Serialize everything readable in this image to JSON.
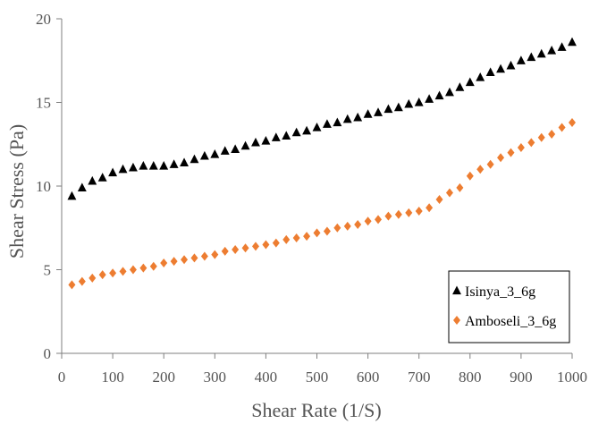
{
  "chart_data": {
    "type": "scatter",
    "xlabel": "Shear Rate (1/S)",
    "ylabel": "Shear Stress (Pa)",
    "xlim": [
      0,
      1000
    ],
    "ylim": [
      0,
      20
    ],
    "xticks": [
      0,
      100,
      200,
      300,
      400,
      500,
      600,
      700,
      800,
      900,
      1000
    ],
    "yticks": [
      0,
      5,
      10,
      15,
      20
    ],
    "grid": false,
    "legend_position": "bottom-right",
    "series": [
      {
        "name": "Isinya_3_6g",
        "marker": "triangle",
        "color": "#000000",
        "x": [
          20,
          40,
          60,
          80,
          100,
          120,
          140,
          160,
          180,
          200,
          220,
          240,
          260,
          280,
          300,
          320,
          340,
          360,
          380,
          400,
          420,
          440,
          460,
          480,
          500,
          520,
          540,
          560,
          580,
          600,
          620,
          640,
          660,
          680,
          700,
          720,
          740,
          760,
          780,
          800,
          820,
          840,
          860,
          880,
          900,
          920,
          940,
          960,
          980,
          1000
        ],
        "y": [
          9.4,
          9.9,
          10.3,
          10.5,
          10.8,
          11.0,
          11.1,
          11.2,
          11.2,
          11.2,
          11.3,
          11.4,
          11.6,
          11.8,
          11.9,
          12.1,
          12.2,
          12.4,
          12.6,
          12.7,
          12.9,
          13.0,
          13.2,
          13.3,
          13.5,
          13.7,
          13.8,
          14.0,
          14.1,
          14.3,
          14.4,
          14.6,
          14.7,
          14.9,
          15.0,
          15.2,
          15.4,
          15.6,
          15.9,
          16.2,
          16.5,
          16.8,
          17.0,
          17.2,
          17.5,
          17.7,
          17.9,
          18.1,
          18.3,
          18.6
        ]
      },
      {
        "name": "Amboseli_3_6g",
        "marker": "diamond",
        "color": "#ed7d31",
        "x": [
          20,
          40,
          60,
          80,
          100,
          120,
          140,
          160,
          180,
          200,
          220,
          240,
          260,
          280,
          300,
          320,
          340,
          360,
          380,
          400,
          420,
          440,
          460,
          480,
          500,
          520,
          540,
          560,
          580,
          600,
          620,
          640,
          660,
          680,
          700,
          720,
          740,
          760,
          780,
          800,
          820,
          840,
          860,
          880,
          900,
          920,
          940,
          960,
          980,
          1000
        ],
        "y": [
          4.1,
          4.3,
          4.5,
          4.7,
          4.8,
          4.9,
          5.0,
          5.1,
          5.2,
          5.4,
          5.5,
          5.6,
          5.7,
          5.8,
          5.9,
          6.1,
          6.2,
          6.3,
          6.4,
          6.5,
          6.6,
          6.8,
          6.9,
          7.0,
          7.2,
          7.3,
          7.5,
          7.6,
          7.7,
          7.9,
          8.0,
          8.2,
          8.3,
          8.4,
          8.5,
          8.7,
          9.2,
          9.6,
          9.9,
          10.6,
          11.0,
          11.3,
          11.7,
          12.0,
          12.3,
          12.6,
          12.9,
          13.1,
          13.5,
          13.8
        ]
      }
    ]
  }
}
